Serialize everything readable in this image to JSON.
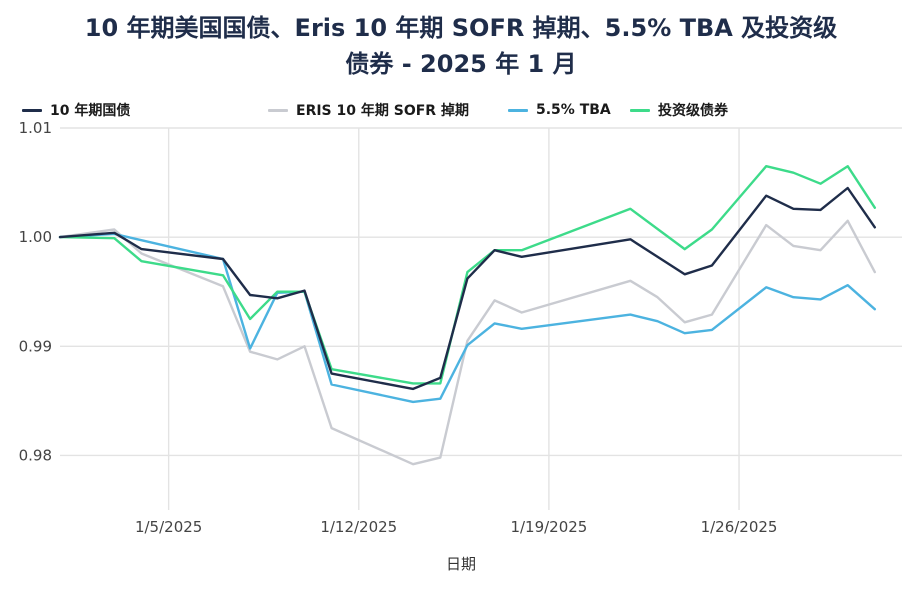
{
  "chart_data": {
    "type": "line",
    "title_line1": "10 年期美国国债、Eris 10 年期 SOFR 掉期、5.5% TBA 及投资级",
    "title_line2": "债券 - 2025 年 1 月",
    "xlabel": "日期",
    "ylabel": "",
    "ylim": [
      0.975,
      1.01
    ],
    "yticks": [
      "0.98",
      "0.99",
      "1.00",
      "1.01"
    ],
    "ytick_values": [
      0.98,
      0.99,
      1.0,
      1.01
    ],
    "xlim": [
      1,
      32
    ],
    "xticks": [
      "1/5/2025",
      "1/12/2025",
      "1/19/2025",
      "1/26/2025"
    ],
    "xtick_values": [
      5,
      12,
      19,
      26
    ],
    "grid": true,
    "legend_position": "top",
    "series": [
      {
        "name": "10 年期国债",
        "color": "#1f2d4a",
        "x": [
          1,
          3,
          4,
          7,
          8,
          9,
          10,
          11,
          14,
          15,
          16,
          17,
          18,
          22,
          24,
          25,
          27,
          28,
          29,
          30,
          31
        ],
        "y": [
          1.0,
          1.0004,
          0.9989,
          0.998,
          0.9947,
          0.9944,
          0.9951,
          0.9875,
          0.9861,
          0.9871,
          0.9962,
          0.9988,
          0.9982,
          0.9998,
          0.9966,
          0.9974,
          1.0038,
          1.0026,
          1.0025,
          1.0045,
          1.0009
        ]
      },
      {
        "name": "ERIS 10 年期 SOFR 掉期",
        "color": "#c9cbd1",
        "x": [
          1,
          3,
          4,
          7,
          8,
          9,
          10,
          11,
          14,
          15,
          16,
          17,
          18,
          22,
          23,
          24,
          25,
          27,
          28,
          29,
          30,
          31
        ],
        "y": [
          1.0,
          1.0007,
          0.9985,
          0.9955,
          0.9895,
          0.9888,
          0.99,
          0.9825,
          0.9792,
          0.9798,
          0.9905,
          0.9942,
          0.9931,
          0.996,
          0.9945,
          0.9922,
          0.9929,
          1.0011,
          0.9992,
          0.9988,
          1.0015,
          0.9968
        ]
      },
      {
        "name": "5.5% TBA",
        "color": "#4cb3e0",
        "x": [
          1,
          3,
          7,
          8,
          9,
          10,
          11,
          14,
          15,
          16,
          17,
          18,
          22,
          23,
          24,
          25,
          27,
          28,
          29,
          30,
          31
        ],
        "y": [
          1.0,
          1.0003,
          0.998,
          0.9898,
          0.9949,
          0.995,
          0.9865,
          0.9849,
          0.9852,
          0.9901,
          0.9921,
          0.9916,
          0.9929,
          0.9923,
          0.9912,
          0.9915,
          0.9954,
          0.9945,
          0.9943,
          0.9956,
          0.9934
        ]
      },
      {
        "name": "投资级债券",
        "color": "#3ddb8a",
        "x": [
          1,
          3,
          4,
          7,
          8,
          9,
          10,
          11,
          14,
          15,
          16,
          17,
          18,
          22,
          24,
          25,
          27,
          28,
          29,
          30,
          31
        ],
        "y": [
          1.0,
          0.9999,
          0.9978,
          0.9965,
          0.9925,
          0.995,
          0.995,
          0.9879,
          0.9866,
          0.9866,
          0.9968,
          0.9988,
          0.9988,
          1.0026,
          0.9989,
          1.0007,
          1.0065,
          1.0059,
          1.0049,
          1.0065,
          1.0027
        ]
      }
    ]
  },
  "legend": [
    {
      "label": "10 年期国债",
      "color": "#1f2d4a"
    },
    {
      "label": "ERIS 10 年期 SOFR 掉期",
      "color": "#c9cbd1"
    },
    {
      "label": "5.5% TBA",
      "color": "#4cb3e0"
    },
    {
      "label": "投资级债券",
      "color": "#3ddb8a"
    }
  ]
}
